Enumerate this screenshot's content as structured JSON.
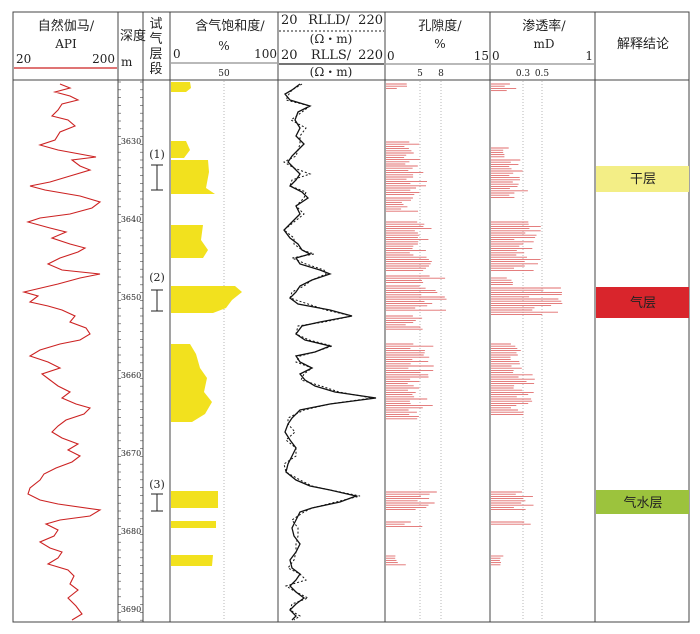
{
  "headers": {
    "gr": {
      "title": "自然伽马/",
      "unit": "API",
      "min": "20",
      "max": "200"
    },
    "depth": {
      "line1": "深度",
      "line2": "m"
    },
    "test": {
      "title": "试气层段"
    },
    "sg": {
      "title": "含气饱和度/",
      "unit": "%",
      "min": "0",
      "max": "100",
      "tick": "50"
    },
    "res": {
      "rlld": "RLLD/",
      "rlld_unit": "(Ω・m)",
      "rlls": "RLLS/",
      "rlls_unit": "(Ω・m)",
      "min": "20",
      "max": "220"
    },
    "por": {
      "title": "孔隙度/",
      "unit": "%",
      "min": "0",
      "max": "15",
      "tick1": "5",
      "tick2": "8"
    },
    "perm": {
      "title": "渗透率/",
      "unit": "mD",
      "min": "0",
      "max": "1",
      "tick1": "0.3",
      "tick2": "0.5"
    },
    "conc": {
      "title": "解释结论"
    }
  },
  "depth_ticks": [
    "3630",
    "3640",
    "3650",
    "3660",
    "3670",
    "3680",
    "3690"
  ],
  "test_intervals": [
    "(1)",
    "(2)",
    "(3)"
  ],
  "conclusions": [
    {
      "label": "干层",
      "color": "#f3ee86"
    },
    {
      "label": "气层",
      "color": "#d9252c"
    },
    {
      "label": "气水层",
      "color": "#9cc33d"
    }
  ],
  "colors": {
    "gr": "#cc2222",
    "sg_fill": "#f2e11e",
    "bars": "#e06b6b",
    "grid": "#444444"
  }
}
